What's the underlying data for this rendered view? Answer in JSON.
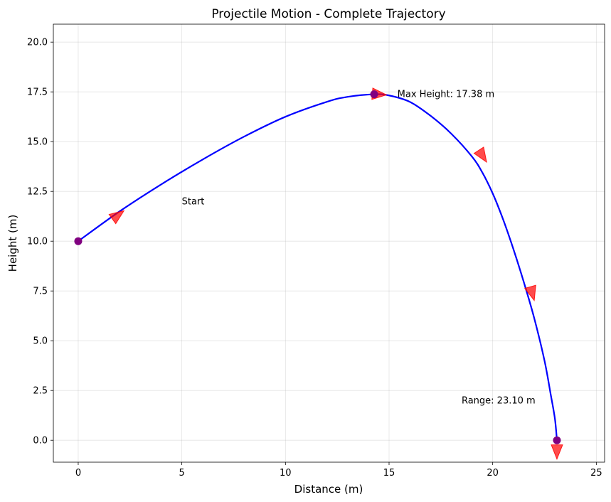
{
  "chart_data": {
    "type": "line",
    "title": "Projectile Motion - Complete Trajectory",
    "xlabel": "Distance (m)",
    "ylabel": "Height (m)",
    "xlim": [
      -1.2,
      25.4
    ],
    "ylim": [
      -1.1,
      20.9
    ],
    "xticks": [
      0,
      5,
      10,
      15,
      20,
      25
    ],
    "xtick_labels": [
      "0",
      "5",
      "10",
      "15",
      "20",
      "25"
    ],
    "yticks": [
      0.0,
      2.5,
      5.0,
      7.5,
      10.0,
      12.5,
      15.0,
      17.5,
      20.0
    ],
    "ytick_labels": [
      "0.0",
      "2.5",
      "5.0",
      "7.5",
      "10.0",
      "12.5",
      "15.0",
      "17.5",
      "20.0"
    ],
    "grid": true,
    "series": [
      {
        "color": "#0000ff",
        "x": [
          0.0,
          2.0,
          4.0,
          6.0,
          8.0,
          10.0,
          12.0,
          13.0,
          14.28,
          15.0,
          16.0,
          17.0,
          18.0,
          19.0,
          19.5,
          20.0,
          20.5,
          21.0,
          21.5,
          22.0,
          22.5,
          22.8,
          23.0,
          23.1
        ],
        "y": [
          10.0,
          11.5,
          12.85,
          14.1,
          15.25,
          16.25,
          17.0,
          17.25,
          17.38,
          17.32,
          17.0,
          16.3,
          15.4,
          14.25,
          13.45,
          12.4,
          11.1,
          9.6,
          7.95,
          6.15,
          4.0,
          2.3,
          1.1,
          0.0
        ]
      }
    ],
    "points": [
      {
        "x": 0.0,
        "y": 10.0,
        "color": "#800080"
      },
      {
        "x": 14.28,
        "y": 17.38,
        "color": "#800080"
      },
      {
        "x": 23.1,
        "y": 0.0,
        "color": "#800080"
      }
    ],
    "arrows": [
      {
        "x": 1.9,
        "y": 11.3,
        "color": "#ff0000"
      },
      {
        "x": 14.5,
        "y": 17.38,
        "color": "#ff0000"
      },
      {
        "x": 19.5,
        "y": 14.3,
        "color": "#ff0000"
      },
      {
        "x": 21.9,
        "y": 7.4,
        "color": "#ff0000"
      },
      {
        "x": 23.1,
        "y": -0.55,
        "color": "#ff0000"
      }
    ],
    "annotations": [
      {
        "text": "Start",
        "x": 5.0,
        "y": 12.0
      },
      {
        "text": "Max Height: 17.38 m",
        "x": 15.4,
        "y": 17.4
      },
      {
        "text": "Range: 23.10 m",
        "x": 18.5,
        "y": 2.0
      }
    ]
  }
}
